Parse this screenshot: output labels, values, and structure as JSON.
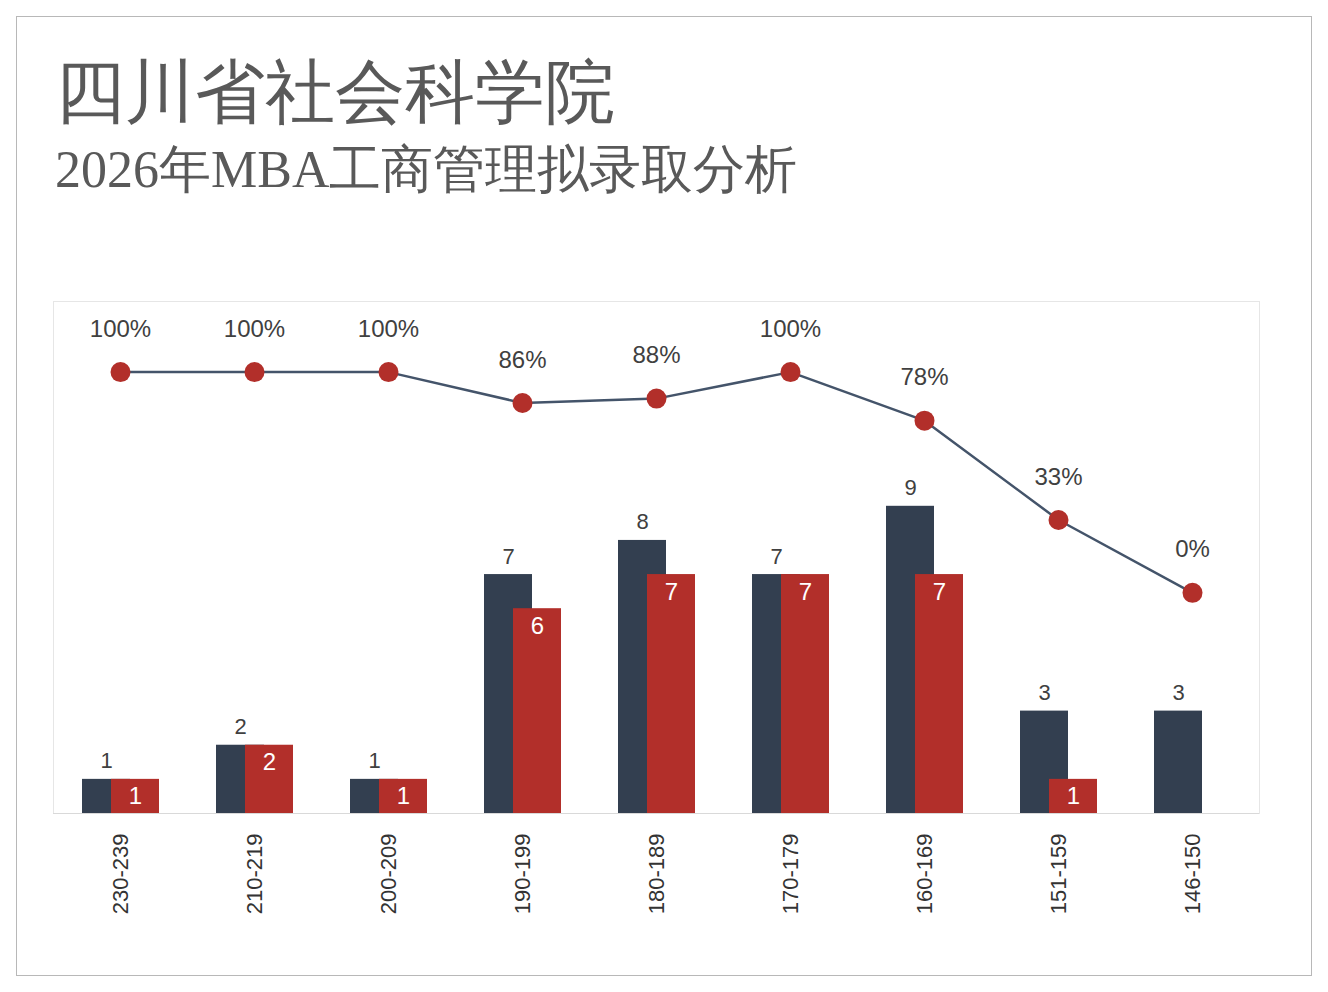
{
  "chart_data": {
    "type": "bar",
    "title": "四川省社会科学院",
    "subtitle": "2026年MBA工商管理拟录取分析",
    "categories": [
      "230-239",
      "210-219",
      "200-209",
      "190-199",
      "180-189",
      "170-179",
      "160-169",
      "151-159",
      "146-150"
    ],
    "series": [
      {
        "type": "bar",
        "color": "#333f50",
        "values": [
          1,
          2,
          1,
          7,
          8,
          7,
          9,
          3,
          3
        ]
      },
      {
        "type": "bar",
        "color": "#b22f2a",
        "values": [
          1,
          2,
          1,
          6,
          7,
          7,
          7,
          1,
          null
        ]
      },
      {
        "type": "line",
        "axis": "y2",
        "color": "#44546a",
        "marker": "circle",
        "values": [
          100,
          100,
          100,
          86,
          88,
          100,
          78,
          33,
          0
        ],
        "value_labels": [
          "100%",
          "100%",
          "100%",
          "86%",
          "88%",
          "100%",
          "78%",
          "33%",
          "0%"
        ]
      }
    ],
    "ylim": [
      0,
      15
    ],
    "yticks": [],
    "y2lim": [
      -100,
      132
    ],
    "y2ticks": [],
    "data_labels": true,
    "tick_labels": "x",
    "grid": false
  }
}
